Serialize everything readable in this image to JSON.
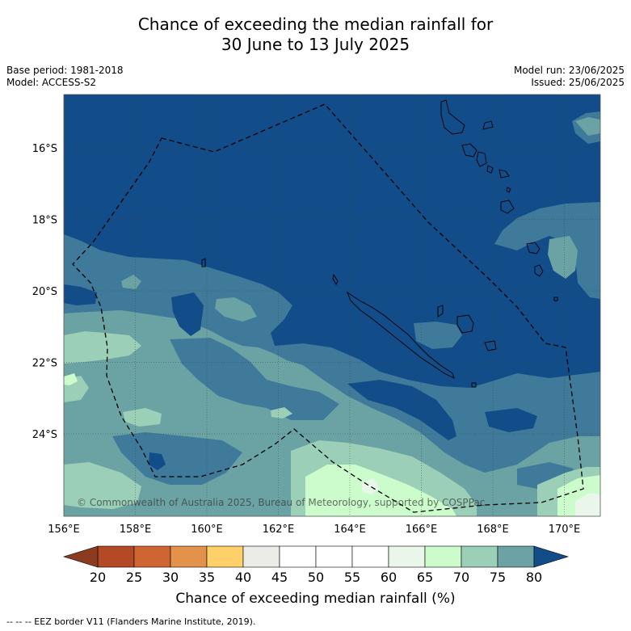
{
  "title_line1": "Chance of exceeding the median rainfall for",
  "title_line2": "30 June to 13 July 2025",
  "base_period": "Base period: 1981-2018",
  "model": "Model: ACCESS-S2",
  "model_run": "Model run: 23/06/2025",
  "issued": "Issued: 25/06/2025",
  "copyright": "© Commonwealth of Australia 2025, Bureau of Meteorology, supported by COSPPac",
  "lon_ticks": [
    "156°E",
    "158°E",
    "160°E",
    "162°E",
    "164°E",
    "166°E",
    "168°E",
    "170°E"
  ],
  "lat_ticks": [
    "16°S",
    "18°S",
    "20°S",
    "22°S",
    "24°S"
  ],
  "colorbar": {
    "label": "Chance of exceeding median rainfall (%)",
    "ticks": [
      "20",
      "25",
      "30",
      "35",
      "40",
      "45",
      "50",
      "55",
      "60",
      "65",
      "70",
      "75",
      "80"
    ],
    "colors": [
      "#b34a25",
      "#cf6533",
      "#e2924a",
      "#fdd06a",
      "#ebebe8",
      "#ffffff",
      "#ffffff",
      "#ffffff",
      "#eaf6ea",
      "#ccfccc",
      "#9ccfb7",
      "#6ba3a4",
      "#3f7a9a"
    ],
    "under_color": "#8c3a20",
    "over_color": "#124c89"
  },
  "footer": "--  --  -- EEZ border V11 (Flanders Marine Institute, 2019).",
  "colors": {
    "band_75_80": "#3f7a9a",
    "band_70_75": "#6ba3a4",
    "band_65_70": "#9ccfb7",
    "band_60_65": "#ccfccc",
    "band_55_60": "#eaf6ea",
    "band_over_80": "#124c89"
  }
}
